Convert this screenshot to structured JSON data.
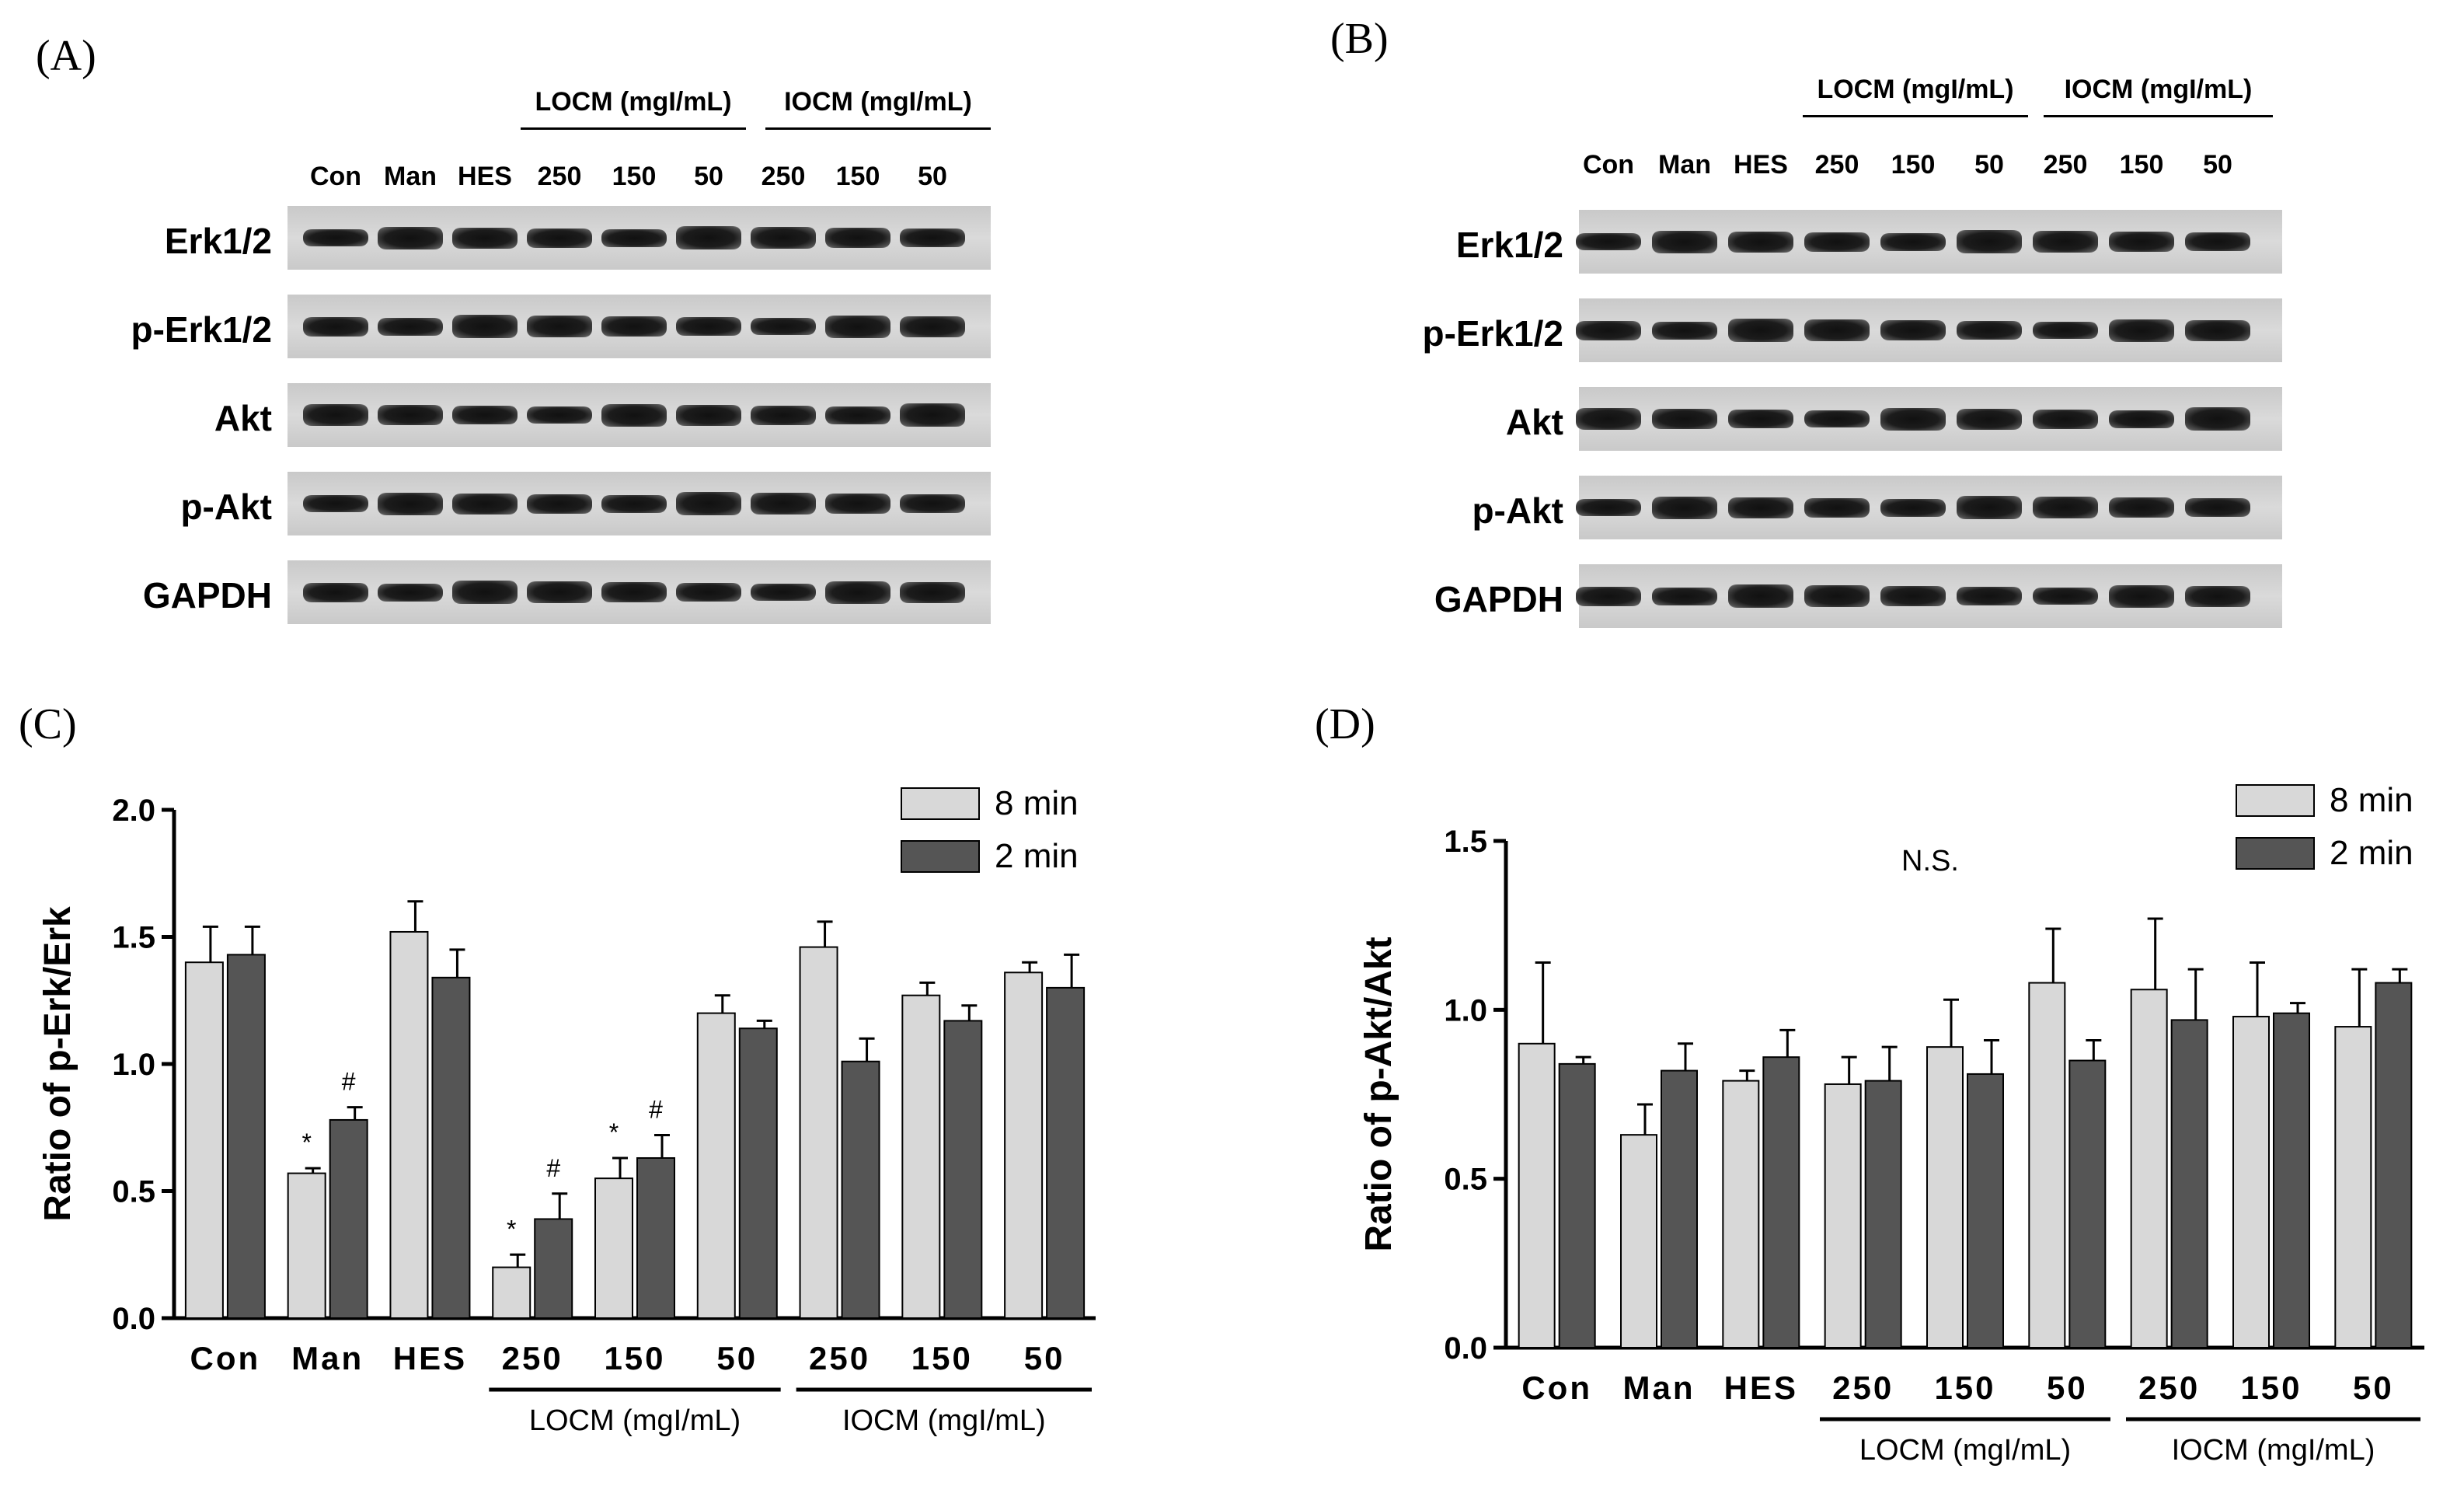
{
  "panels": {
    "a": {
      "label": "(A)",
      "lanes": [
        "Con",
        "Man",
        "HES",
        "250",
        "150",
        "50",
        "250",
        "150",
        "50"
      ],
      "group_locm": "LOCM (mgI/mL)",
      "group_iocm": "IOCM (mgI/mL)",
      "rows": [
        "Erk1/2",
        "p-Erk1/2",
        "Akt",
        "p-Akt",
        "GAPDH"
      ]
    },
    "b": {
      "label": "(B)",
      "lanes": [
        "Con",
        "Man",
        "HES",
        "250",
        "150",
        "50",
        "250",
        "150",
        "50"
      ],
      "group_locm": "LOCM (mgI/mL)",
      "group_iocm": "IOCM (mgI/mL)",
      "rows": [
        "Erk1/2",
        "p-Erk1/2",
        "Akt",
        "p-Akt",
        "GAPDH"
      ]
    },
    "c": {
      "label": "(C)"
    },
    "d": {
      "label": "(D)"
    }
  },
  "chart_data": [
    {
      "type": "bar",
      "ylabel": "Ratio of p-Erk/Erk",
      "ylim": [
        0,
        2.0
      ],
      "yticks": [
        "0.0",
        "0.5",
        "1.0",
        "1.5",
        "2.0"
      ],
      "categories": [
        "Con",
        "Man",
        "HES",
        "250",
        "150",
        "50",
        "250",
        "150",
        "50"
      ],
      "group_labels": [
        "LOCM (mgI/mL)",
        "IOCM (mgI/mL)"
      ],
      "legend_position": "top-right",
      "annotation": "",
      "series": [
        {
          "name": "8 min",
          "color": "#d8d8d8",
          "values": [
            1.4,
            0.57,
            1.52,
            0.2,
            0.55,
            1.2,
            1.46,
            1.27,
            1.36
          ],
          "errors": [
            0.14,
            0.02,
            0.12,
            0.05,
            0.08,
            0.07,
            0.1,
            0.05,
            0.04
          ],
          "marks": [
            "",
            "*",
            "",
            "*",
            "*",
            "",
            "",
            "",
            ""
          ]
        },
        {
          "name": "2 min",
          "color": "#555555",
          "values": [
            1.43,
            0.78,
            1.34,
            0.39,
            0.63,
            1.14,
            1.01,
            1.17,
            1.3
          ],
          "errors": [
            0.11,
            0.05,
            0.11,
            0.1,
            0.09,
            0.03,
            0.09,
            0.06,
            0.13
          ],
          "marks": [
            "",
            "#",
            "",
            "#",
            "#",
            "",
            "",
            "",
            ""
          ]
        }
      ]
    },
    {
      "type": "bar",
      "ylabel": "Ratio of p-Akt/Akt",
      "ylim": [
        0,
        1.5
      ],
      "yticks": [
        "0.0",
        "0.5",
        "1.0",
        "1.5"
      ],
      "categories": [
        "Con",
        "Man",
        "HES",
        "250",
        "150",
        "50",
        "250",
        "150",
        "50"
      ],
      "group_labels": [
        "LOCM (mgI/mL)",
        "IOCM (mgI/mL)"
      ],
      "legend_position": "top-right",
      "annotation": "N.S.",
      "series": [
        {
          "name": "8 min",
          "color": "#d8d8d8",
          "values": [
            0.9,
            0.63,
            0.79,
            0.78,
            0.89,
            1.08,
            1.06,
            0.98,
            0.95
          ],
          "errors": [
            0.24,
            0.09,
            0.03,
            0.08,
            0.14,
            0.16,
            0.21,
            0.16,
            0.17
          ],
          "marks": [
            "",
            "",
            "",
            "",
            "",
            "",
            "",
            "",
            ""
          ]
        },
        {
          "name": "2 min",
          "color": "#555555",
          "values": [
            0.84,
            0.82,
            0.86,
            0.79,
            0.81,
            0.85,
            0.97,
            0.99,
            1.08
          ],
          "errors": [
            0.02,
            0.08,
            0.08,
            0.1,
            0.1,
            0.06,
            0.15,
            0.03,
            0.04
          ],
          "marks": [
            "",
            "",
            "",
            "",
            "",
            "",
            "",
            "",
            ""
          ]
        }
      ]
    }
  ]
}
